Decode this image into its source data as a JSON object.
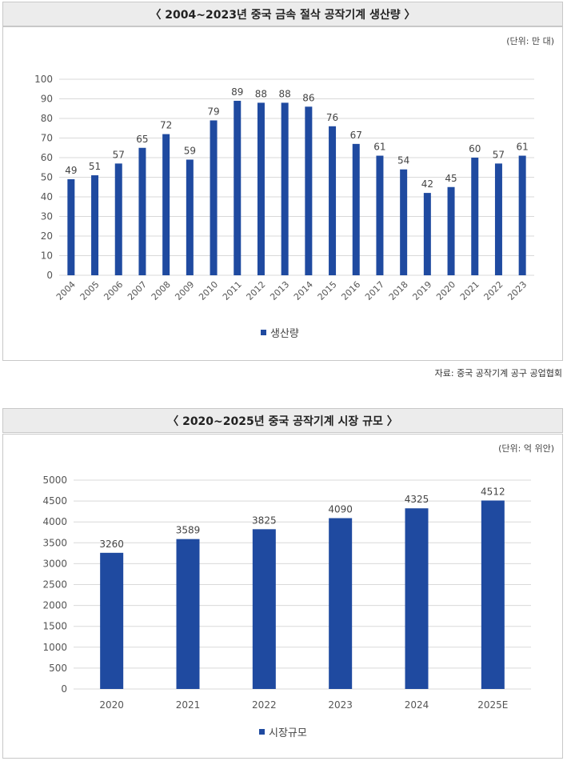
{
  "colors": {
    "bar": "#1f4aa0",
    "grid": "#d9d9d9",
    "axis_text": "#555555"
  },
  "chart_data": [
    {
      "type": "bar",
      "title": "〈 2004~2023년 중국 금속 절삭 공작기계 생산량 〉",
      "unit_label": "(단위: 만 대)",
      "categories": [
        "2004",
        "2005",
        "2006",
        "2007",
        "2008",
        "2009",
        "2010",
        "2011",
        "2012",
        "2013",
        "2014",
        "2015",
        "2016",
        "2017",
        "2018",
        "2019",
        "2020",
        "2021",
        "2022",
        "2023"
      ],
      "series": [
        {
          "name": "생산량",
          "values": [
            49,
            51,
            57,
            65,
            72,
            59,
            79,
            89,
            88,
            88,
            86,
            76,
            67,
            61,
            54,
            42,
            45,
            60,
            57,
            61
          ]
        }
      ],
      "ylim": [
        0,
        100
      ],
      "yticks": [
        "0",
        "10",
        "20",
        "30",
        "40",
        "50",
        "60",
        "70",
        "80",
        "90",
        "100"
      ],
      "ytick_values": [
        0,
        10,
        20,
        30,
        40,
        50,
        60,
        70,
        80,
        90,
        100
      ],
      "grid": true,
      "legend": "bottom",
      "source": "자료: 중국 공작기계 공구 공업협회"
    },
    {
      "type": "bar",
      "title": "〈 2020~2025년 중국 공작기계 시장 규모 〉",
      "unit_label": "(단위: 억 위안)",
      "categories": [
        "2020",
        "2021",
        "2022",
        "2023",
        "2024",
        "2025E"
      ],
      "series": [
        {
          "name": "시장규모",
          "values": [
            3260,
            3589,
            3825,
            4090,
            4325,
            4512
          ]
        }
      ],
      "ylim": [
        0,
        5000
      ],
      "yticks": [
        "0",
        "500",
        "1000",
        "1500",
        "2000",
        "2500",
        "3000",
        "3500",
        "4000",
        "4500",
        "5000"
      ],
      "ytick_values": [
        0,
        500,
        1000,
        1500,
        2000,
        2500,
        3000,
        3500,
        4000,
        4500,
        5000
      ],
      "grid": true,
      "legend": "bottom"
    }
  ]
}
